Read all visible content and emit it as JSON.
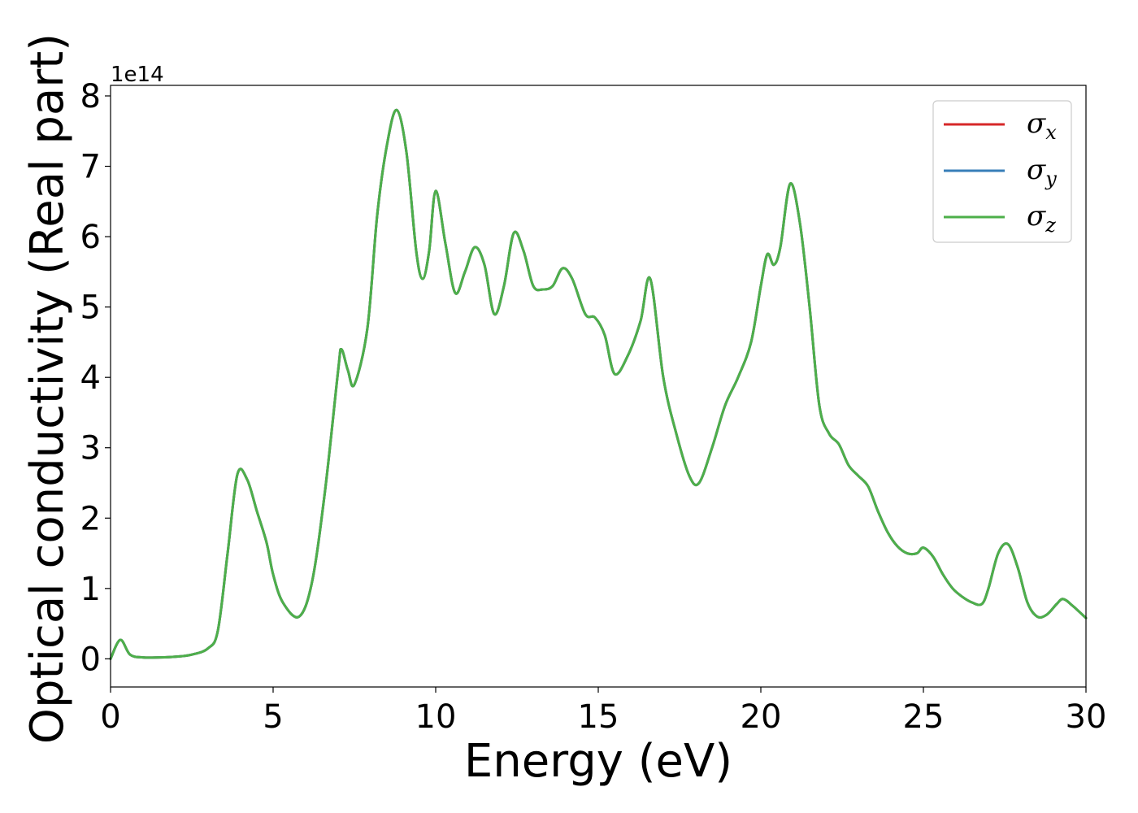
{
  "chart_data": {
    "type": "line",
    "title": "",
    "xlabel": "Energy (eV)",
    "ylabel": "Optical conductivity (Real part)",
    "y_offset_label": "1e14",
    "xlim": [
      0,
      30
    ],
    "ylim": [
      -0.4,
      8.15
    ],
    "x_ticks": [
      0,
      5,
      10,
      15,
      20,
      25,
      30
    ],
    "x_tick_labels": [
      "0",
      "5",
      "10",
      "15",
      "20",
      "25",
      "30"
    ],
    "y_ticks": [
      0,
      1,
      2,
      3,
      4,
      5,
      6,
      7,
      8
    ],
    "y_tick_labels": [
      "0",
      "1",
      "2",
      "3",
      "4",
      "5",
      "6",
      "7",
      "8"
    ],
    "grid": false,
    "legend": "top-right",
    "x": [
      0,
      0.3,
      0.6,
      1.0,
      1.5,
      2.0,
      2.5,
      3.0,
      3.3,
      3.6,
      3.9,
      4.2,
      4.5,
      4.8,
      5.0,
      5.3,
      5.8,
      6.2,
      6.6,
      7.0,
      7.1,
      7.3,
      7.5,
      7.9,
      8.2,
      8.5,
      8.8,
      9.1,
      9.4,
      9.6,
      9.8,
      10.0,
      10.3,
      10.6,
      10.9,
      11.2,
      11.5,
      11.8,
      12.1,
      12.4,
      12.7,
      13.0,
      13.3,
      13.6,
      13.9,
      14.2,
      14.6,
      14.9,
      15.2,
      15.5,
      15.9,
      16.3,
      16.6,
      17.0,
      17.4,
      17.8,
      18.1,
      18.5,
      18.9,
      19.3,
      19.7,
      20.0,
      20.2,
      20.4,
      20.6,
      20.9,
      21.2,
      21.5,
      21.8,
      22.1,
      22.4,
      22.7,
      23.0,
      23.3,
      23.6,
      23.9,
      24.2,
      24.5,
      24.8,
      25.0,
      25.3,
      25.6,
      25.9,
      26.2,
      26.5,
      26.8,
      27.0,
      27.3,
      27.6,
      27.9,
      28.2,
      28.5,
      28.8,
      29.1,
      29.3,
      29.6,
      30.0
    ],
    "series": [
      {
        "name": "σx",
        "color": "#d62728",
        "values": [
          0.0,
          0.27,
          0.06,
          0.02,
          0.02,
          0.03,
          0.06,
          0.15,
          0.4,
          1.5,
          2.62,
          2.55,
          2.1,
          1.65,
          1.2,
          0.8,
          0.6,
          1.1,
          2.4,
          4.1,
          4.4,
          4.1,
          3.9,
          4.7,
          6.3,
          7.3,
          7.8,
          7.2,
          5.8,
          5.4,
          5.8,
          6.65,
          5.9,
          5.2,
          5.5,
          5.85,
          5.6,
          4.9,
          5.3,
          6.05,
          5.8,
          5.3,
          5.25,
          5.3,
          5.55,
          5.4,
          4.9,
          4.85,
          4.6,
          4.05,
          4.3,
          4.8,
          5.4,
          4.0,
          3.2,
          2.6,
          2.5,
          3.0,
          3.6,
          4.0,
          4.5,
          5.3,
          5.75,
          5.6,
          5.85,
          6.75,
          6.2,
          5.0,
          3.6,
          3.2,
          3.05,
          2.75,
          2.6,
          2.45,
          2.1,
          1.8,
          1.6,
          1.5,
          1.5,
          1.58,
          1.45,
          1.2,
          1.0,
          0.88,
          0.8,
          0.78,
          1.0,
          1.5,
          1.63,
          1.3,
          0.8,
          0.6,
          0.63,
          0.78,
          0.85,
          0.75,
          0.58
        ]
      },
      {
        "name": "σy",
        "color": "#377eb8",
        "values": [
          0.0,
          0.27,
          0.06,
          0.02,
          0.02,
          0.03,
          0.06,
          0.15,
          0.4,
          1.5,
          2.62,
          2.55,
          2.1,
          1.65,
          1.2,
          0.8,
          0.6,
          1.1,
          2.4,
          4.1,
          4.4,
          4.1,
          3.9,
          4.7,
          6.3,
          7.3,
          7.8,
          7.2,
          5.8,
          5.4,
          5.8,
          6.65,
          5.9,
          5.2,
          5.5,
          5.85,
          5.6,
          4.9,
          5.3,
          6.05,
          5.8,
          5.3,
          5.25,
          5.3,
          5.55,
          5.4,
          4.9,
          4.85,
          4.6,
          4.05,
          4.3,
          4.8,
          5.4,
          4.0,
          3.2,
          2.6,
          2.5,
          3.0,
          3.6,
          4.0,
          4.5,
          5.3,
          5.75,
          5.6,
          5.85,
          6.75,
          6.2,
          5.0,
          3.6,
          3.2,
          3.05,
          2.75,
          2.6,
          2.45,
          2.1,
          1.8,
          1.6,
          1.5,
          1.5,
          1.58,
          1.45,
          1.2,
          1.0,
          0.88,
          0.8,
          0.78,
          1.0,
          1.5,
          1.63,
          1.3,
          0.8,
          0.6,
          0.63,
          0.78,
          0.85,
          0.75,
          0.58
        ]
      },
      {
        "name": "σz",
        "color": "#4daf4a",
        "values": [
          0.0,
          0.27,
          0.06,
          0.02,
          0.02,
          0.03,
          0.06,
          0.15,
          0.4,
          1.5,
          2.62,
          2.55,
          2.1,
          1.65,
          1.2,
          0.8,
          0.6,
          1.1,
          2.4,
          4.1,
          4.4,
          4.1,
          3.9,
          4.7,
          6.3,
          7.3,
          7.8,
          7.2,
          5.8,
          5.4,
          5.8,
          6.65,
          5.9,
          5.2,
          5.5,
          5.85,
          5.6,
          4.9,
          5.3,
          6.05,
          5.8,
          5.3,
          5.25,
          5.3,
          5.55,
          5.4,
          4.9,
          4.85,
          4.6,
          4.05,
          4.3,
          4.8,
          5.4,
          4.0,
          3.2,
          2.6,
          2.5,
          3.0,
          3.6,
          4.0,
          4.5,
          5.3,
          5.75,
          5.6,
          5.85,
          6.75,
          6.2,
          5.0,
          3.6,
          3.2,
          3.05,
          2.75,
          2.6,
          2.45,
          2.1,
          1.8,
          1.6,
          1.5,
          1.5,
          1.58,
          1.45,
          1.2,
          1.0,
          0.88,
          0.8,
          0.78,
          1.0,
          1.5,
          1.63,
          1.3,
          0.8,
          0.6,
          0.63,
          0.78,
          0.85,
          0.75,
          0.58
        ]
      }
    ]
  }
}
